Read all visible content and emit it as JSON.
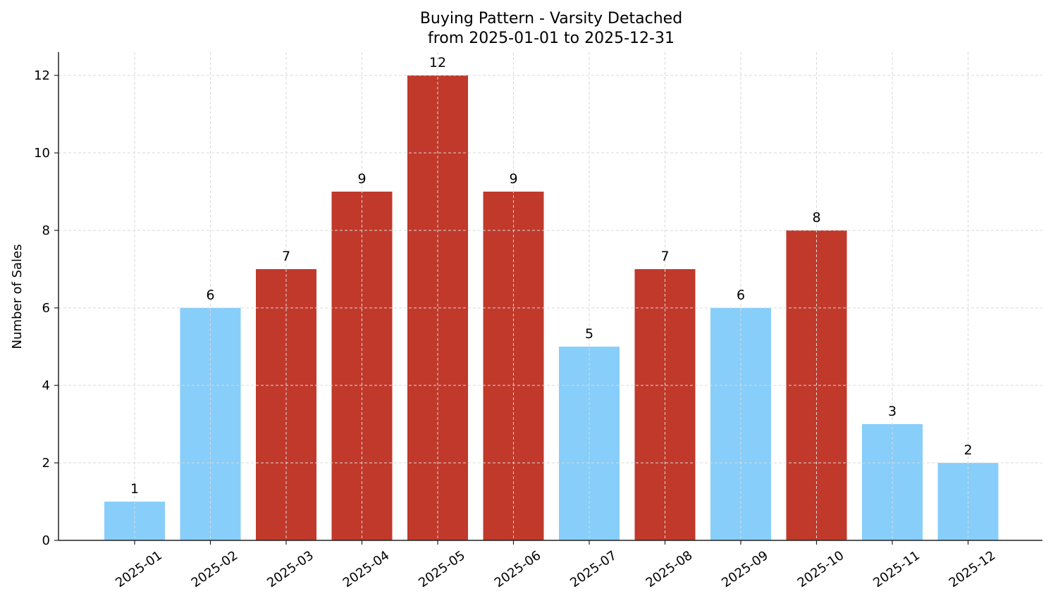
{
  "chart_data": {
    "type": "bar",
    "title": "Buying Pattern - Varsity Detached",
    "subtitle": "from 2025-01-01 to 2025-12-31",
    "xlabel": "",
    "ylabel": "Number of Sales",
    "categories": [
      "2025-01",
      "2025-02",
      "2025-03",
      "2025-04",
      "2025-05",
      "2025-06",
      "2025-07",
      "2025-08",
      "2025-09",
      "2025-10",
      "2025-11",
      "2025-12"
    ],
    "values": [
      1,
      6,
      7,
      9,
      12,
      9,
      5,
      7,
      6,
      8,
      3,
      2
    ],
    "bar_colors": [
      "#87CEFA",
      "#87CEFA",
      "#C0392B",
      "#C0392B",
      "#C0392B",
      "#C0392B",
      "#87CEFA",
      "#C0392B",
      "#87CEFA",
      "#C0392B",
      "#87CEFA",
      "#87CEFA"
    ],
    "ylim": [
      0,
      12.6
    ],
    "yticks": [
      0,
      2,
      4,
      6,
      8,
      10,
      12
    ],
    "grid": true,
    "grid_style": "dashed",
    "legend": null,
    "xtick_rotation": 35,
    "data_labels": true
  },
  "colors": {
    "light_bar": "#87CEFA",
    "dark_bar": "#C0392B",
    "grid": "#d9d9d9",
    "axis": "#222222"
  }
}
